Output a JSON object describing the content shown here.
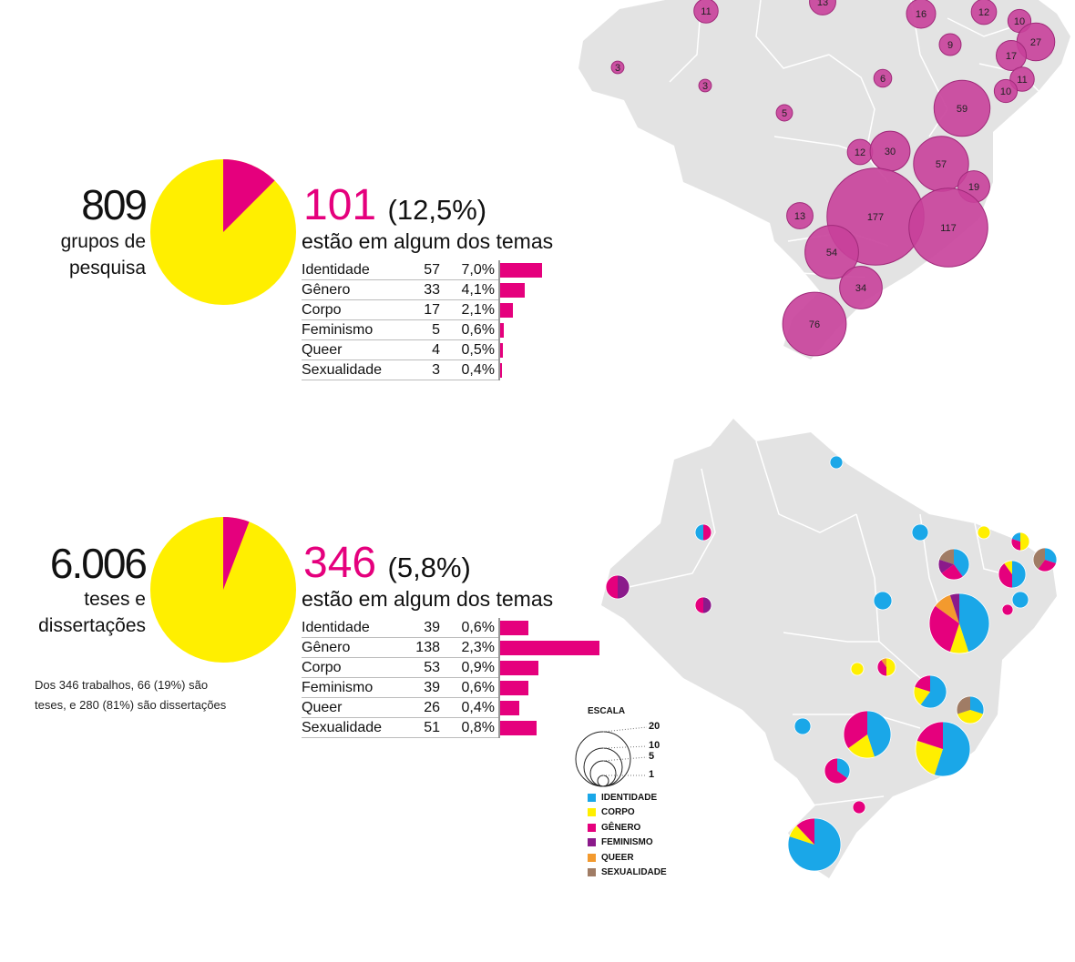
{
  "colors": {
    "magenta": "#e5007d",
    "yellow": "#ffef00",
    "bubble": "#c8409a",
    "map_fill": "#e3e3e3",
    "identidade": "#1aa7e8",
    "corpo": "#ffef00",
    "genero": "#e5007d",
    "feminismo": "#8b1a8b",
    "queer": "#f39a2e",
    "sexualidade": "#a07c65"
  },
  "chart_data": [
    {
      "type": "pie",
      "total": "809",
      "total_label_line1": "grupos de",
      "total_label_line2": "pesquisa",
      "highlight_value": "101",
      "highlight_pct": "(12,5%)",
      "headline": "estão em algum dos temas",
      "share": 0.125
    },
    {
      "type": "table",
      "rows": [
        {
          "category": "Identidade",
          "count": "57",
          "percent": "7,0%",
          "value": 57
        },
        {
          "category": "Gênero",
          "count": "33",
          "percent": "4,1%",
          "value": 33
        },
        {
          "category": "Corpo",
          "count": "17",
          "percent": "2,1%",
          "value": 17
        },
        {
          "category": "Feminismo",
          "count": "5",
          "percent": "0,6%",
          "value": 5
        },
        {
          "category": "Queer",
          "count": "4",
          "percent": "0,5%",
          "value": 4
        },
        {
          "category": "Sexualidade",
          "count": "3",
          "percent": "0,4%",
          "value": 3
        }
      ]
    },
    {
      "type": "scatter",
      "bubbles": [
        "11",
        "13",
        "16",
        "12",
        "10",
        "27",
        "9",
        "17",
        "3",
        "3",
        "6",
        "11",
        "10",
        "5",
        "59",
        "12",
        "30",
        "57",
        "19",
        "13",
        "177",
        "117",
        "54",
        "34",
        "76"
      ]
    },
    {
      "type": "pie",
      "total": "6.006",
      "total_label_line1": "teses e",
      "total_label_line2": "dissertações",
      "highlight_value": "346",
      "highlight_pct": "(5,8%)",
      "headline": "estão em algum dos temas",
      "share": 0.058
    },
    {
      "type": "table",
      "rows": [
        {
          "category": "Identidade",
          "count": "39",
          "percent": "0,6%",
          "value": 39
        },
        {
          "category": "Gênero",
          "count": "138",
          "percent": "2,3%",
          "value": 138
        },
        {
          "category": "Corpo",
          "count": "53",
          "percent": "0,9%",
          "value": 53
        },
        {
          "category": "Feminismo",
          "count": "39",
          "percent": "0,6%",
          "value": 39
        },
        {
          "category": "Queer",
          "count": "26",
          "percent": "0,4%",
          "value": 26
        },
        {
          "category": "Sexualidade",
          "count": "51",
          "percent": "0,8%",
          "value": 51
        }
      ]
    }
  ],
  "note": {
    "line1": "Dos 346 trabalhos, 66 (19%) são",
    "line2": "teses, e 280 (81%) são dissertações"
  },
  "legend": {
    "title": "ESCALA",
    "scale_values": [
      "20",
      "10",
      "5",
      "1"
    ],
    "items": [
      {
        "label": "IDENTIDADE",
        "color": "#1aa7e8"
      },
      {
        "label": "CORPO",
        "color": "#ffef00"
      },
      {
        "label": "GÊNERO",
        "color": "#e5007d"
      },
      {
        "label": "FEMINISMO",
        "color": "#8b1a8b"
      },
      {
        "label": "QUEER",
        "color": "#f39a2e"
      },
      {
        "label": "SEXUALIDADE",
        "color": "#a07c65"
      }
    ]
  }
}
